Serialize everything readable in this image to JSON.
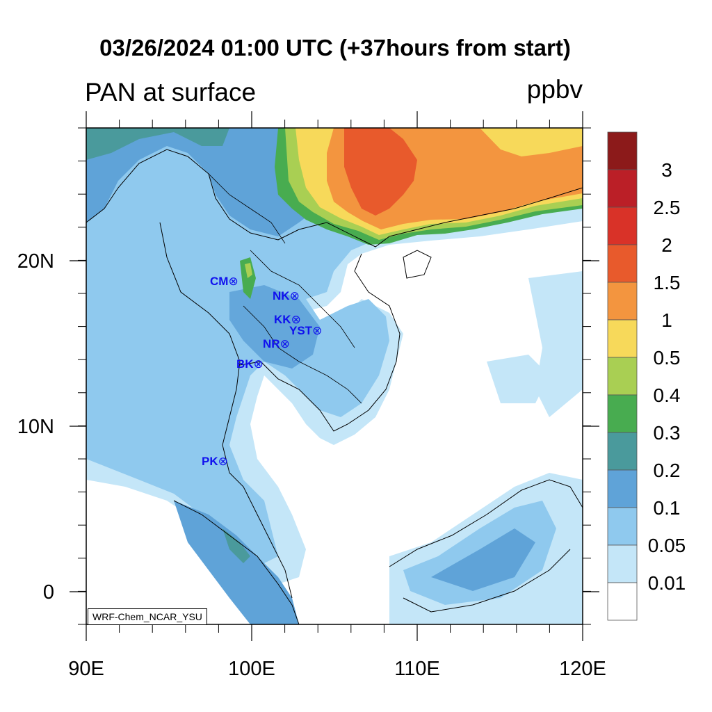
{
  "title": "03/26/2024 01:00 UTC (+37hours from start)",
  "left_title": "PAN at surface",
  "right_title": "ppbv",
  "lat_labels": [
    "20N",
    "10N",
    "0"
  ],
  "lon_labels": [
    "90E",
    "100E",
    "110E",
    "120E"
  ],
  "credit": "WRF-Chem_NCAR_YSU",
  "colorbar": {
    "labels": [
      "3",
      "2.5",
      "2",
      "1.5",
      "1",
      "0.5",
      "0.4",
      "0.3",
      "0.2",
      "0.1",
      "0.05",
      "0.01"
    ],
    "colors_top_to_bottom": [
      "#8c1a1a",
      "#bb1f27",
      "#d93228",
      "#e85a2c",
      "#f3953f",
      "#f7d95a",
      "#a9cf53",
      "#48ac50",
      "#4a9a9c",
      "#5fa3d8",
      "#8fc9ee",
      "#c4e6f8",
      "#ffffff"
    ]
  },
  "stations": [
    {
      "id": "CM",
      "label": "CM",
      "marker": "⊗"
    },
    {
      "id": "NK",
      "label": "NK",
      "marker": "⊗"
    },
    {
      "id": "KK",
      "label": "KK",
      "marker": "⊗"
    },
    {
      "id": "YST",
      "label": "YST",
      "marker": "⊗"
    },
    {
      "id": "NR",
      "label": "NR",
      "marker": "⊗"
    },
    {
      "id": "BK",
      "label": "BK",
      "marker": "⊗"
    },
    {
      "id": "PK",
      "label": "PK",
      "marker": "⊗"
    }
  ],
  "map": {
    "variable": "PAN",
    "level": "surface",
    "units": "ppbv",
    "lon_range": [
      90,
      120
    ],
    "lat_range": [
      -2,
      28
    ]
  }
}
